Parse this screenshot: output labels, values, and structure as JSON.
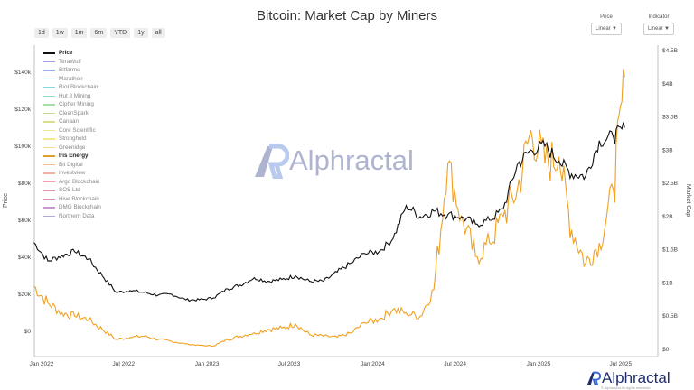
{
  "title": "Bitcoin: Market Cap by Miners",
  "range_buttons": [
    "1d",
    "1w",
    "1m",
    "6m",
    "YTD",
    "1y",
    "all"
  ],
  "controls": {
    "price": {
      "label": "Price",
      "value": "Linear"
    },
    "indicator": {
      "label": "Indicator",
      "value": "Linear"
    }
  },
  "watermark": "Alphractal",
  "footer": {
    "brand": "Alphractal",
    "copyright": "© Alphractal All rights reserved"
  },
  "colors": {
    "price": "#111111",
    "iris": "#f0a020"
  },
  "chart_data": {
    "type": "line",
    "title": "Bitcoin: Market Cap by Miners",
    "ylabel": "Price",
    "y2label": "Market Cap",
    "yticks": [
      "$0",
      "$20k",
      "$40k",
      "$60k",
      "$80k",
      "$100k",
      "$120k",
      "$140k"
    ],
    "y2ticks": [
      "$0",
      "$0.5B",
      "$1B",
      "$1.5B",
      "$2B",
      "$2.5B",
      "$3B",
      "$3.5B",
      "$4B",
      "$4.5B"
    ],
    "xticks": [
      "Jan 2022",
      "Jul 2022",
      "Jan 2023",
      "Jul 2023",
      "Jan 2024",
      "Jul 2024",
      "Jan 2025",
      "Jul 2025"
    ],
    "ylim": [
      0,
      145000
    ],
    "y2lim": [
      0,
      4.5
    ],
    "legend": [
      "Price",
      "TeraWulf",
      "Bitfarms",
      "Marathon",
      "Riot Blockchain",
      "Hut 8 Mining",
      "Cipher Mining",
      "CleanSpark",
      "Canaan",
      "Core Scientific",
      "Stronghold",
      "Greenidge",
      "Iris Energy",
      "Bit Digital",
      "Investview",
      "Argo Blockchain",
      "SOS Ltd",
      "Hive Blockchain",
      "DMG Blockchain",
      "Northern Data"
    ],
    "legend_colors": [
      "#111111",
      "#a99be0",
      "#9fb0e8",
      "#8fc8e0",
      "#88d8d8",
      "#98dcc8",
      "#a8dca8",
      "#c4dc98",
      "#d8e090",
      "#e8e890",
      "#f4e890",
      "#f4d890",
      "#e0a030",
      "#f0c098",
      "#f0b0a0",
      "#f0a0a8",
      "#e890b0",
      "#d890c0",
      "#c898d0",
      "#b8a8d8"
    ],
    "dates": [
      "2021-12-15",
      "2022-01-15",
      "2022-02-15",
      "2022-03-15",
      "2022-04-15",
      "2022-05-15",
      "2022-06-15",
      "2022-07-15",
      "2022-08-15",
      "2022-09-15",
      "2022-10-15",
      "2022-11-15",
      "2022-12-15",
      "2023-01-15",
      "2023-02-15",
      "2023-03-15",
      "2023-04-15",
      "2023-05-15",
      "2023-06-15",
      "2023-07-15",
      "2023-08-15",
      "2023-09-15",
      "2023-10-15",
      "2023-11-15",
      "2023-12-15",
      "2024-01-15",
      "2024-02-15",
      "2024-03-15",
      "2024-04-15",
      "2024-05-15",
      "2024-06-15",
      "2024-07-15",
      "2024-08-15",
      "2024-09-15",
      "2024-10-15",
      "2024-11-15",
      "2024-12-15",
      "2025-01-15",
      "2025-02-15",
      "2025-03-15",
      "2025-04-15",
      "2025-05-15",
      "2025-06-15",
      "2025-07-10"
    ],
    "series": [
      {
        "name": "Price",
        "axis": "left",
        "values": [
          48000,
          38000,
          41000,
          43000,
          39000,
          30000,
          21000,
          22000,
          21000,
          19500,
          20000,
          17000,
          17000,
          18000,
          23000,
          25000,
          29000,
          27000,
          28000,
          30000,
          27000,
          27000,
          32000,
          37000,
          42000,
          43000,
          50000,
          68000,
          62000,
          65000,
          63000,
          62000,
          58000,
          60000,
          66000,
          90000,
          98000,
          100000,
          92000,
          85000,
          84000,
          103000,
          105000,
          110000
        ]
      },
      {
        "name": "Iris Energy",
        "axis": "right",
        "values": [
          0.95,
          0.7,
          0.55,
          0.5,
          0.45,
          0.3,
          0.15,
          0.18,
          0.2,
          0.15,
          0.12,
          0.08,
          0.06,
          0.05,
          0.15,
          0.2,
          0.25,
          0.3,
          0.32,
          0.38,
          0.22,
          0.2,
          0.18,
          0.25,
          0.4,
          0.45,
          0.6,
          0.55,
          0.5,
          0.9,
          2.8,
          2.0,
          1.4,
          1.6,
          2.0,
          2.4,
          3.3,
          2.8,
          2.9,
          1.8,
          1.3,
          1.6,
          2.4,
          4.1
        ]
      }
    ]
  }
}
